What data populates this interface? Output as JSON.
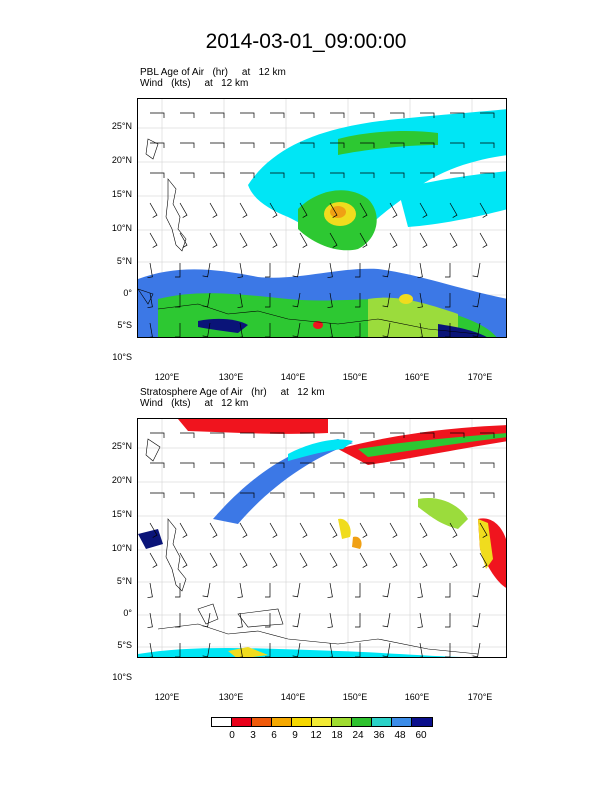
{
  "title": "2014-03-01_09:00:00",
  "panels": [
    {
      "id": "pbl",
      "header_line1": "PBL Age of Air   (hr)     at   12 km",
      "header_line2": "Wind   (kts)     at   12 km"
    },
    {
      "id": "strat",
      "header_line1": "Stratosphere Age of Air   (hr)     at   12 km",
      "header_line2": "Wind   (kts)     at   12 km"
    }
  ],
  "lat_labels": [
    "25°N",
    "20°N",
    "15°N",
    "10°N",
    "5°N",
    "0°",
    "5°S",
    "10°S"
  ],
  "lon_labels": [
    "120°E",
    "130°E",
    "140°E",
    "150°E",
    "160°E",
    "170°E"
  ],
  "colorbar": {
    "labels": [
      "0",
      "3",
      "6",
      "9",
      "12",
      "18",
      "24",
      "36",
      "48",
      "60"
    ],
    "colors": [
      "#ffffff",
      "#e8001a",
      "#f05a0a",
      "#f5a800",
      "#f5d700",
      "#f2ea34",
      "#9fdc30",
      "#2ec22e",
      "#2ad2c8",
      "#3b8ce8",
      "#0a0f8c"
    ]
  },
  "map_colors": {
    "cyan": "#00e6f5",
    "blue": "#3c78e6",
    "green": "#2dc832",
    "lightgreen": "#9bdc3c",
    "yellow": "#f0dc1e",
    "orange": "#f0a014",
    "red": "#f0141e",
    "navy": "#0a1478"
  }
}
